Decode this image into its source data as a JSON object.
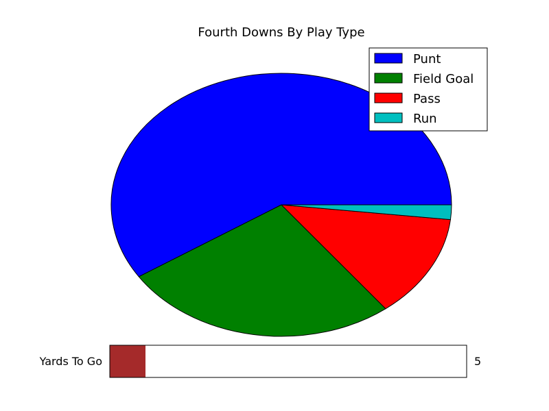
{
  "chart_data": {
    "type": "pie",
    "title": "Fourth Downs By Play Type",
    "categories": [
      "Punt",
      "Field Goal",
      "Pass",
      "Run"
    ],
    "values": [
      59.2,
      26.3,
      12.7,
      1.8
    ],
    "colors": [
      "#0000ff",
      "#008000",
      "#ff0000",
      "#00bfbf"
    ],
    "start_angle_deg": 0,
    "direction": "counterclockwise",
    "legend_position": "top-right"
  },
  "slider": {
    "label": "Yards To Go",
    "value": 5,
    "value_text": "5",
    "min": 0,
    "max": 50,
    "fill_color": "#a52a2a"
  }
}
